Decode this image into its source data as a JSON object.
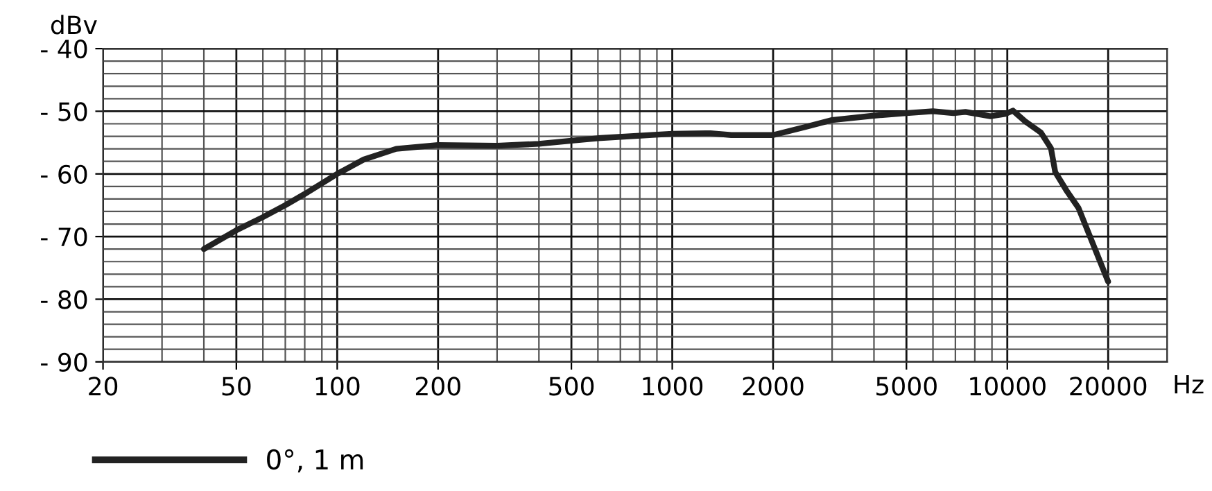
{
  "chart_data": {
    "type": "line",
    "xlabel": "Hz",
    "ylabel": "dBv",
    "log": "x",
    "xlim": [
      20,
      30000
    ],
    "xticks": [
      20,
      50,
      100,
      200,
      500,
      1000,
      2000,
      5000,
      10000,
      20000
    ],
    "ylim": [
      -90,
      -40
    ],
    "yticks": [
      {
        "value": -40,
        "label": "- 40"
      },
      {
        "value": -50,
        "label": "- 50"
      },
      {
        "value": -60,
        "label": "- 60"
      },
      {
        "value": -70,
        "label": "- 70"
      },
      {
        "value": -80,
        "label": "- 80"
      },
      {
        "value": -90,
        "label": "- 90"
      }
    ],
    "grid": true,
    "legend": "bottom left",
    "marker": "none",
    "line_style": "solid",
    "series": [
      {
        "name": "0°, 1 m",
        "color": "#222222",
        "x": [
          40,
          50,
          60,
          70,
          80,
          100,
          120,
          150,
          200,
          300,
          400,
          500,
          600,
          1000,
          1300,
          1500,
          2000,
          2500,
          3000,
          4000,
          5000,
          6000,
          6900,
          7500,
          8900,
          9900,
          10400,
          11300,
          12600,
          13500,
          13900,
          15000,
          16300,
          20000
        ],
        "values": [
          -72,
          -69,
          -66.9,
          -65,
          -63.2,
          -60,
          -57.7,
          -56,
          -55.4,
          -55.5,
          -55.2,
          -54.7,
          -54.3,
          -53.6,
          -53.5,
          -53.8,
          -53.8,
          -52.5,
          -51.4,
          -50.7,
          -50.3,
          -50,
          -50.3,
          -50.1,
          -50.8,
          -50.4,
          -49.9,
          -51.6,
          -53.4,
          -55.9,
          -59.7,
          -62.6,
          -65.4,
          -77.2
        ]
      }
    ]
  }
}
